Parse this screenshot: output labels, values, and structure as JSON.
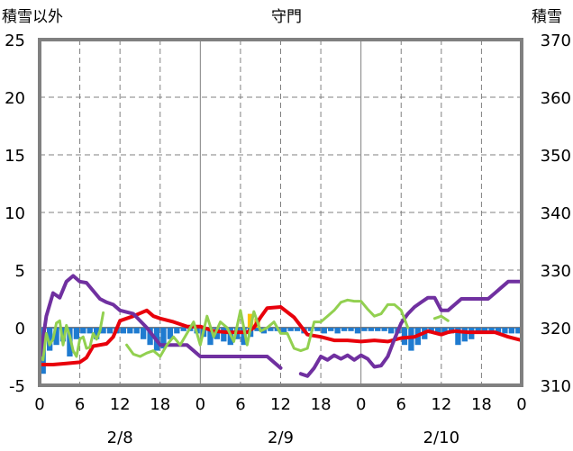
{
  "chart_data": {
    "type": "line",
    "title": "守門",
    "ylabel_left": "積雪以外",
    "ylabel_right": "積雪",
    "ylim_left": [
      -5,
      25
    ],
    "yticks_left": [
      "25",
      "20",
      "15",
      "10",
      "5",
      "0",
      "-5"
    ],
    "ylim_right": [
      310,
      370
    ],
    "yticks_right": [
      "370",
      "360",
      "350",
      "340",
      "330",
      "320",
      "310"
    ],
    "x_hours": [
      0,
      72
    ],
    "xticks": [
      "0",
      "6",
      "12",
      "18",
      "0",
      "6",
      "12",
      "18",
      "0",
      "6",
      "12",
      "18",
      "0"
    ],
    "date_labels": [
      "2/8",
      "2/9",
      "2/10"
    ],
    "grid": true,
    "series": [
      {
        "axis": "left",
        "color": "#e8000b",
        "x": [
          0,
          2,
          4,
          6,
          7,
          8,
          10,
          11,
          12,
          14,
          16,
          17,
          18,
          20,
          22,
          24,
          26,
          28,
          30,
          31,
          32,
          33,
          34,
          36,
          38,
          40,
          42,
          44,
          46,
          48,
          50,
          52,
          54,
          56,
          58,
          60,
          61,
          62,
          64,
          66,
          68,
          70,
          72
        ],
        "values": [
          -3.2,
          -3.2,
          -3.1,
          -3.0,
          -2.6,
          -1.6,
          -1.4,
          -0.8,
          0.6,
          1.0,
          1.5,
          1.0,
          0.8,
          0.5,
          0.1,
          0.1,
          -0.3,
          -0.4,
          -0.4,
          -0.4,
          0.0,
          0.9,
          1.7,
          1.8,
          0.9,
          -0.6,
          -0.8,
          -1.1,
          -1.1,
          -1.2,
          -1.1,
          -1.2,
          -0.9,
          -0.8,
          -0.3,
          -0.6,
          -0.4,
          -0.3,
          -0.4,
          -0.4,
          -0.4,
          -0.8,
          -1.1
        ]
      },
      {
        "axis": "left",
        "color": "#7030a0",
        "x": [
          0,
          1,
          2,
          3,
          4,
          5,
          6,
          7,
          8,
          9,
          10,
          11,
          12,
          14,
          16,
          18,
          20,
          22,
          24,
          26,
          28,
          30,
          32,
          34,
          36
        ],
        "values": [
          -3.0,
          1.0,
          3.0,
          2.6,
          4.0,
          4.5,
          4.0,
          3.9,
          3.2,
          2.5,
          2.2,
          2.0,
          1.5,
          1.2,
          0.0,
          -1.5,
          -1.5,
          -1.5,
          -2.5,
          -2.5,
          -2.5,
          -2.5,
          -2.5,
          -2.5,
          -3.5
        ]
      },
      {
        "axis": "left",
        "color": "#7030a0",
        "x": [
          39,
          40,
          41,
          42,
          43,
          44,
          45,
          46,
          47,
          48,
          49,
          50,
          51,
          52,
          53,
          54,
          55,
          56,
          57,
          58,
          59,
          60,
          61,
          62,
          63,
          64,
          65,
          66,
          67,
          68,
          69,
          70,
          71,
          72
        ],
        "values": [
          -4.0,
          -4.2,
          -3.5,
          -2.5,
          -2.8,
          -2.4,
          -2.7,
          -2.4,
          -2.8,
          -2.4,
          -2.7,
          -3.4,
          -3.3,
          -2.5,
          -1.0,
          0.4,
          1.2,
          1.8,
          2.2,
          2.6,
          2.6,
          1.5,
          1.5,
          2.0,
          2.5,
          2.5,
          2.5,
          2.5,
          2.5,
          3.0,
          3.5,
          4.0,
          4.0,
          4.0
        ]
      },
      {
        "axis": "left",
        "color": "#92d050",
        "x": [
          0,
          0.5,
          1,
          1.5,
          2,
          2.5,
          3,
          3.5,
          4,
          4.5,
          5,
          5.5,
          6,
          6.5,
          7,
          7.5,
          8,
          8.5,
          9,
          9.5
        ],
        "values": [
          -2.5,
          -2.8,
          -0.5,
          -1.5,
          -1.0,
          0.4,
          0.6,
          -1.5,
          0.2,
          -0.7,
          -2.0,
          -2.5,
          -1.0,
          -0.8,
          -1.8,
          -1.7,
          -0.5,
          -1.0,
          -0.3,
          1.3
        ]
      },
      {
        "axis": "left",
        "color": "#92d050",
        "x": [
          13,
          14,
          15,
          16,
          17,
          18,
          19,
          20,
          21,
          22,
          23,
          24,
          25,
          26,
          27,
          28,
          29,
          30,
          31,
          32,
          33,
          34,
          35,
          36,
          37,
          38,
          39,
          40,
          41,
          42,
          43,
          44,
          45,
          46,
          47,
          48,
          49,
          50,
          51,
          52,
          53,
          54,
          55
        ],
        "values": [
          -1.5,
          -2.3,
          -2.5,
          -2.2,
          -2.0,
          -2.5,
          -1.5,
          -0.8,
          -1.5,
          -0.5,
          0.5,
          -1.5,
          1.0,
          -0.8,
          0.5,
          0.0,
          -1.2,
          1.5,
          -1.5,
          1.4,
          -0.3,
          0.0,
          0.5,
          -0.5,
          -0.5,
          -1.8,
          -2.0,
          -1.8,
          0.5,
          0.5,
          1.0,
          1.5,
          2.2,
          2.4,
          2.3,
          2.3,
          1.6,
          1.0,
          1.2,
          2.0,
          2.0,
          1.5,
          0.0
        ]
      },
      {
        "axis": "left",
        "color": "#92d050",
        "x": [
          59,
          60,
          61
        ],
        "values": [
          0.8,
          1.0,
          0.6
        ]
      }
    ],
    "bars": [
      {
        "color": "#1f7bd0",
        "x": [
          0.5,
          1.5,
          2.5,
          3.5,
          4.5,
          5.5,
          6.5,
          7.5,
          8.5,
          9.5,
          10.5,
          11.5,
          12.5,
          13.5,
          14.5,
          15.5,
          16.5,
          17.5,
          18.5,
          19.5,
          20.5,
          21.5,
          22.5,
          23.5,
          24.5,
          25.5,
          26.5,
          27.5,
          28.5,
          29.5,
          30.5,
          31.5,
          32.5,
          33.5,
          34.5,
          35.5,
          36.5,
          37.5,
          38.5,
          39.5,
          40.5,
          41.5,
          42.5,
          43.5,
          44.5,
          45.5,
          46.5,
          47.5,
          48.5,
          49.5,
          50.5,
          51.5,
          52.5,
          53.5,
          54.5,
          55.5,
          56.5,
          57.5,
          58.5,
          59.5,
          60.5,
          61.5,
          62.5,
          63.5,
          64.5,
          65.5,
          66.5,
          67.5,
          68.5,
          69.5,
          70.5,
          71.5
        ],
        "values": [
          -4.0,
          -2.0,
          -1.5,
          -1.2,
          -2.5,
          -1.0,
          -0.5,
          -0.5,
          -1.0,
          -0.5,
          -0.5,
          -0.5,
          -0.5,
          -0.5,
          -0.5,
          -1.0,
          -1.5,
          -2.0,
          -1.8,
          -1.0,
          -0.5,
          -0.3,
          -0.3,
          -0.5,
          -0.8,
          -1.5,
          -1.0,
          -1.2,
          -1.5,
          -1.0,
          -1.5,
          -0.8,
          -0.3,
          -0.5,
          -0.3,
          -0.3,
          -0.5,
          -0.3,
          -0.3,
          -0.5,
          -0.3,
          -0.3,
          -0.5,
          -0.3,
          -0.5,
          -0.3,
          -0.3,
          -0.5,
          -0.3,
          -0.3,
          -0.3,
          -0.3,
          -0.5,
          -0.5,
          -1.5,
          -2.0,
          -1.5,
          -1.0,
          -0.5,
          -0.5,
          -0.5,
          -0.5,
          -1.5,
          -1.2,
          -1.0,
          -0.5,
          -0.5,
          -0.5,
          -0.5,
          -0.5,
          -0.5,
          -0.5
        ]
      },
      {
        "color": "#ffc000",
        "x": [
          31.5,
          32.5
        ],
        "values": [
          1.2,
          0.8
        ]
      }
    ]
  }
}
